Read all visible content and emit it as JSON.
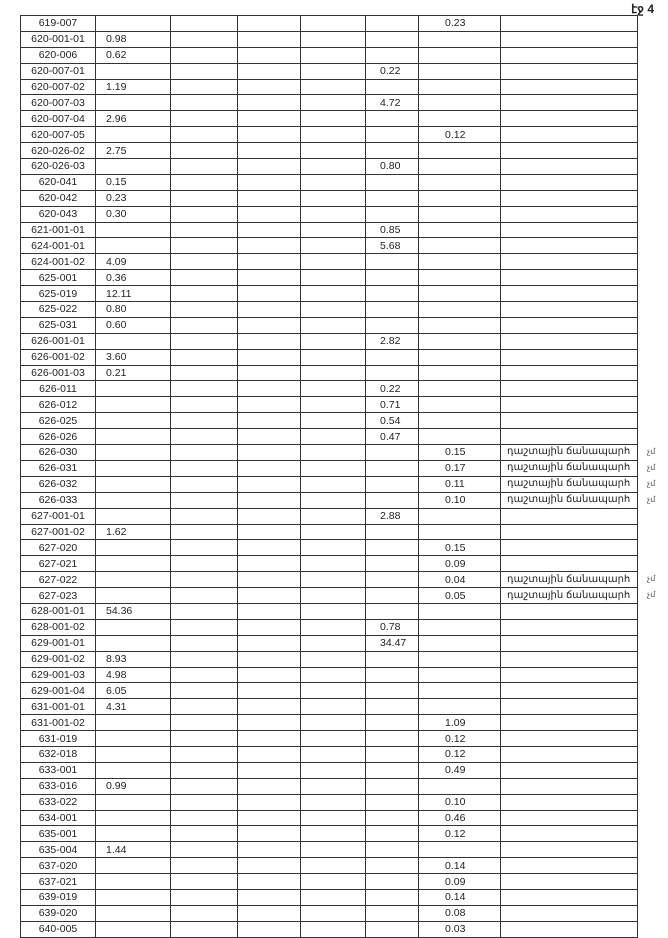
{
  "page_label": "էջ 4",
  "rows": [
    [
      "619-007",
      "",
      "",
      "0.23",
      "",
      ""
    ],
    [
      "620-001-01",
      "0.98",
      "",
      "",
      "",
      ""
    ],
    [
      "620-006",
      "0.62",
      "",
      "",
      "",
      ""
    ],
    [
      "620-007-01",
      "",
      "0.22",
      "",
      "",
      ""
    ],
    [
      "620-007-02",
      "1.19",
      "",
      "",
      "",
      ""
    ],
    [
      "620-007-03",
      "",
      "4.72",
      "",
      "",
      ""
    ],
    [
      "620-007-04",
      "2.96",
      "",
      "",
      "",
      ""
    ],
    [
      "620-007-05",
      "",
      "",
      "0.12",
      "",
      ""
    ],
    [
      "620-026-02",
      "2.75",
      "",
      "",
      "",
      ""
    ],
    [
      "620-026-03",
      "",
      "0.80",
      "",
      "",
      ""
    ],
    [
      "620-041",
      "0.15",
      "",
      "",
      "",
      ""
    ],
    [
      "620-042",
      "0.23",
      "",
      "",
      "",
      ""
    ],
    [
      "620-043",
      "0.30",
      "",
      "",
      "",
      ""
    ],
    [
      "621-001-01",
      "",
      "0.85",
      "",
      "",
      ""
    ],
    [
      "624-001-01",
      "",
      "5.68",
      "",
      "",
      ""
    ],
    [
      "624-001-02",
      "4.09",
      "",
      "",
      "",
      ""
    ],
    [
      "625-001",
      "0.36",
      "",
      "",
      "",
      ""
    ],
    [
      "625-019",
      "12.11",
      "",
      "",
      "",
      ""
    ],
    [
      "625-022",
      "0.80",
      "",
      "",
      "",
      ""
    ],
    [
      "625-031",
      "0.60",
      "",
      "",
      "",
      ""
    ],
    [
      "626-001-01",
      "",
      "2.82",
      "",
      "",
      ""
    ],
    [
      "626-001-02",
      "3.60",
      "",
      "",
      "",
      ""
    ],
    [
      "626-001-03",
      "0.21",
      "",
      "",
      "",
      ""
    ],
    [
      "626-011",
      "",
      "0.22",
      "",
      "",
      ""
    ],
    [
      "626-012",
      "",
      "0.71",
      "",
      "",
      ""
    ],
    [
      "626-025",
      "",
      "0.54",
      "",
      "",
      ""
    ],
    [
      "626-026",
      "",
      "0.47",
      "",
      "",
      ""
    ],
    [
      "626-030",
      "",
      "",
      "0.15",
      "դաշտային ճանապարհ",
      "չմ"
    ],
    [
      "626-031",
      "",
      "",
      "0.17",
      "դաշտային ճանապարհ",
      "չմ"
    ],
    [
      "626-032",
      "",
      "",
      "0.11",
      "դաշտային ճանապարհ",
      "չմ"
    ],
    [
      "626-033",
      "",
      "",
      "0.10",
      "դաշտային ճանապարհ",
      "չմ"
    ],
    [
      "627-001-01",
      "",
      "2.88",
      "",
      "",
      ""
    ],
    [
      "627-001-02",
      "1.62",
      "",
      "",
      "",
      ""
    ],
    [
      "627-020",
      "",
      "",
      "0.15",
      "",
      ""
    ],
    [
      "627-021",
      "",
      "",
      "0.09",
      "",
      ""
    ],
    [
      "627-022",
      "",
      "",
      "0.04",
      "դաշտային ճանապարհ",
      "չմ"
    ],
    [
      "627-023",
      "",
      "",
      "0.05",
      "դաշտային ճանապարհ",
      "չմ"
    ],
    [
      "628-001-01",
      "54.36",
      "",
      "",
      "",
      ""
    ],
    [
      "628-001-02",
      "",
      "0.78",
      "",
      "",
      ""
    ],
    [
      "629-001-01",
      "",
      "34.47",
      "",
      "",
      ""
    ],
    [
      "629-001-02",
      "8.93",
      "",
      "",
      "",
      ""
    ],
    [
      "629-001-03",
      "4.98",
      "",
      "",
      "",
      ""
    ],
    [
      "629-001-04",
      "6.05",
      "",
      "",
      "",
      ""
    ],
    [
      "631-001-01",
      "4.31",
      "",
      "",
      "",
      ""
    ],
    [
      "631-001-02",
      "",
      "",
      "1.09",
      "",
      ""
    ],
    [
      "631-019",
      "",
      "",
      "0.12",
      "",
      ""
    ],
    [
      "632-018",
      "",
      "",
      "0.12",
      "",
      ""
    ],
    [
      "633-001",
      "",
      "",
      "0.49",
      "",
      ""
    ],
    [
      "633-016",
      "0.99",
      "",
      "",
      "",
      ""
    ],
    [
      "633-022",
      "",
      "",
      "0.10",
      "",
      ""
    ],
    [
      "634-001",
      "",
      "",
      "0.46",
      "",
      ""
    ],
    [
      "635-001",
      "",
      "",
      "0.12",
      "",
      ""
    ],
    [
      "635-004",
      "1.44",
      "",
      "",
      "",
      ""
    ],
    [
      "637-020",
      "",
      "",
      "0.14",
      "",
      ""
    ],
    [
      "637-021",
      "",
      "",
      "0.09",
      "",
      ""
    ],
    [
      "639-019",
      "",
      "",
      "0.14",
      "",
      ""
    ],
    [
      "639-020",
      "",
      "",
      "0.08",
      "",
      ""
    ],
    [
      "640-005",
      "",
      "",
      "0.03",
      "",
      ""
    ]
  ]
}
